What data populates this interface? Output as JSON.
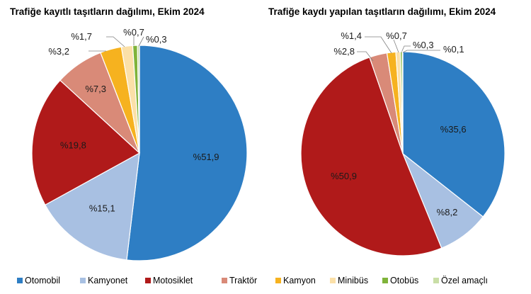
{
  "chart_data": [
    {
      "type": "pie",
      "title": "Trafiğe kayıtlı taşıtların dağılımı, Ekim 2024",
      "categories": [
        "Otomobil",
        "Kamyonet",
        "Motosiklet",
        "Traktör",
        "Kamyon",
        "Minibüs",
        "Otobüs",
        "Özel amaçlı"
      ],
      "values": [
        51.9,
        15.1,
        19.8,
        7.3,
        3.2,
        1.7,
        0.7,
        0.3
      ],
      "labels": [
        "%51,9",
        "%15,1",
        "%19,8",
        "%7,3",
        "%3,2",
        "%1,7",
        "%0,7",
        "%0,3"
      ]
    },
    {
      "type": "pie",
      "title": "Trafiğe kaydı yapılan taşıtların dağılımı, Ekim 2024",
      "categories": [
        "Otomobil",
        "Kamyonet",
        "Motosiklet",
        "Traktör",
        "Kamyon",
        "Minibüs",
        "Otobüs",
        "Özel amaçlı"
      ],
      "values": [
        35.6,
        8.2,
        50.9,
        2.8,
        1.4,
        0.7,
        0.3,
        0.1
      ],
      "labels": [
        "%35,6",
        "%8,2",
        "%50,9",
        "%2,8",
        "%1,4",
        "%0,7",
        "%0,3",
        "%0,1"
      ]
    }
  ],
  "colors": [
    "#2e7ec4",
    "#a8c0e2",
    "#b01a1a",
    "#d98a78",
    "#f6b21f",
    "#fbe0a8",
    "#7fb33a",
    "#c9dea6"
  ],
  "legend": {
    "position": "bottom",
    "items": [
      "Otomobil",
      "Kamyonet",
      "Motosiklet",
      "Traktör",
      "Kamyon",
      "Minibüs",
      "Otobüs",
      "Özel amaçlı"
    ]
  }
}
